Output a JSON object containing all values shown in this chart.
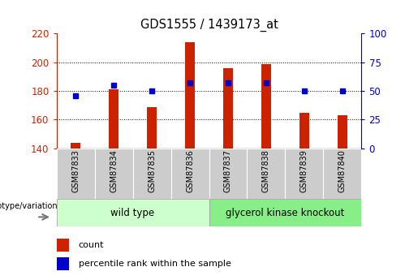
{
  "title": "GDS1555 / 1439173_at",
  "samples": [
    "GSM87833",
    "GSM87834",
    "GSM87835",
    "GSM87836",
    "GSM87837",
    "GSM87838",
    "GSM87839",
    "GSM87840"
  ],
  "counts": [
    144,
    181,
    169,
    214,
    196,
    199,
    165,
    163
  ],
  "percentile_ranks": [
    46,
    55,
    50,
    57,
    57,
    57,
    50,
    50
  ],
  "ymin": 140,
  "ymax": 220,
  "yticks_left": [
    140,
    160,
    180,
    200,
    220
  ],
  "yticks_right": [
    0,
    25,
    50,
    75,
    100
  ],
  "grid_values": [
    160,
    180,
    200
  ],
  "bar_color": "#cc2200",
  "dot_color": "#0000cc",
  "bar_width": 0.25,
  "wild_type_label": "wild type",
  "knockout_label": "glycerol kinase knockout",
  "wild_type_color": "#ccffcc",
  "knockout_color": "#88ee88",
  "sample_box_color": "#cccccc",
  "legend_count_label": "count",
  "legend_pct_label": "percentile rank within the sample",
  "genotype_label": "genotype/variation"
}
